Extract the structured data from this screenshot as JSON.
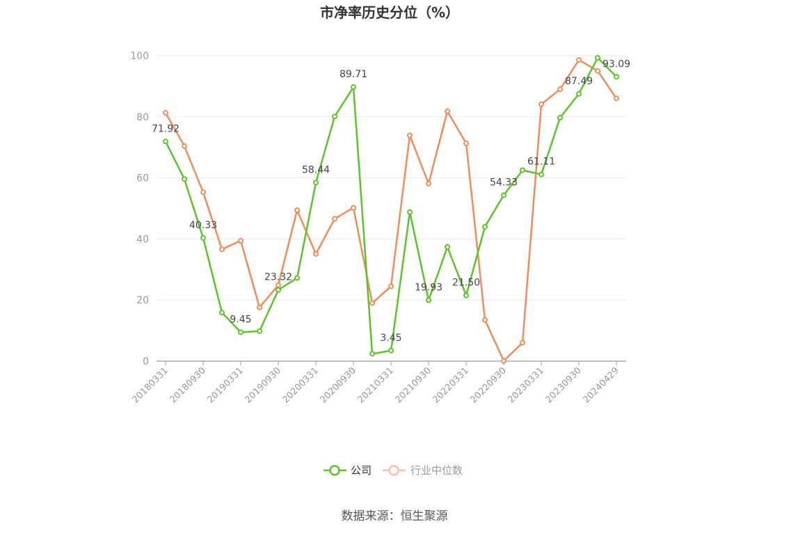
{
  "chart_data": {
    "type": "line",
    "title": "市净率历史分位（%）",
    "source": "数据来源：恒生聚源",
    "ylim": [
      0,
      100
    ],
    "yticks": [
      "0",
      "20",
      "40",
      "60",
      "80",
      "100"
    ],
    "grid": true,
    "legend_position": "bottom",
    "x_tick_labels": [
      "20180331",
      "20180930",
      "20190331",
      "20190930",
      "20200331",
      "20200930",
      "20210331",
      "20210930",
      "20220331",
      "20220930",
      "20230331",
      "20230930",
      "20240429"
    ],
    "x": [
      "20180331",
      "20180630",
      "20180930",
      "20181231",
      "20190331",
      "20190630",
      "20190930",
      "20191231",
      "20200331",
      "20200630",
      "20200930",
      "20201231",
      "20210331",
      "20210630",
      "20210930",
      "20211231",
      "20220331",
      "20220630",
      "20220930",
      "20221231",
      "20230331",
      "20230630",
      "20230930",
      "20231231",
      "20240429"
    ],
    "series": [
      {
        "name": "公司",
        "color": "#5ac42a",
        "values": [
          71.92,
          59.6,
          40.33,
          15.9,
          9.45,
          9.8,
          23.32,
          27.2,
          58.44,
          80.1,
          89.71,
          2.4,
          3.45,
          48.8,
          19.93,
          37.4,
          21.5,
          44.0,
          54.33,
          62.5,
          61.11,
          79.7,
          87.49,
          99.3,
          93.09
        ],
        "labels": [
          "71.92",
          "",
          "40.33",
          "",
          "9.45",
          "",
          "23.32",
          "",
          "58.44",
          "",
          "89.71",
          "",
          "3.45",
          "",
          "19.93",
          "",
          "21.50",
          "",
          "54.33",
          "",
          "61.11",
          "",
          "87.49",
          "",
          "93.09"
        ]
      },
      {
        "name": "行业中位数",
        "color": "#f08c5a",
        "values": [
          81.3,
          70.4,
          55.3,
          36.6,
          39.4,
          17.6,
          24.9,
          49.4,
          35.1,
          46.6,
          50.2,
          19.0,
          24.5,
          73.9,
          58.1,
          81.8,
          71.3,
          13.5,
          0.1,
          6.0,
          84.1,
          89.0,
          98.6,
          95.0,
          86.0
        ],
        "labels": []
      }
    ]
  }
}
